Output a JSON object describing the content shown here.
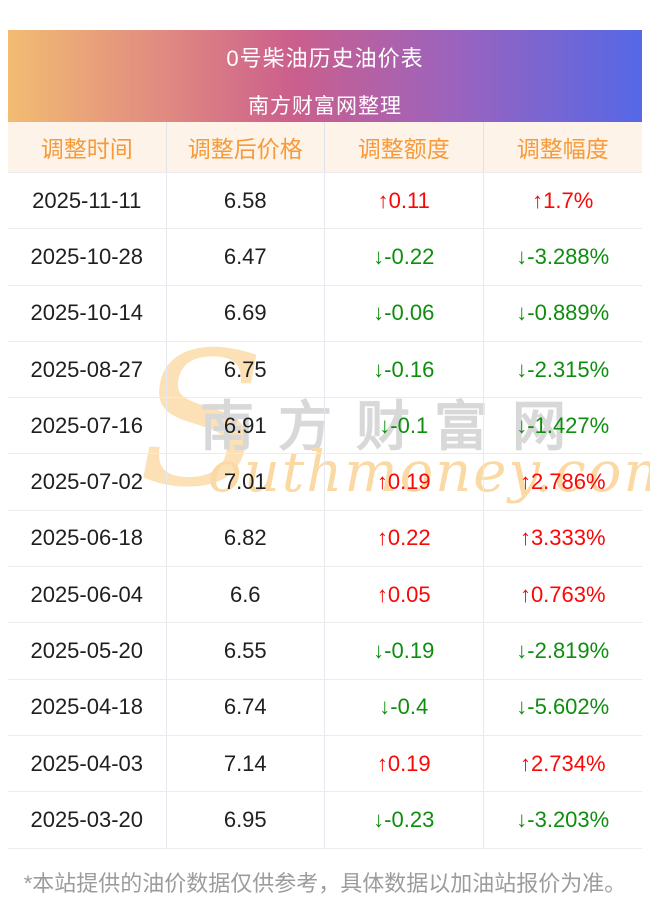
{
  "banner": {
    "title": "0号柴油历史油价表",
    "subtitle": "南方财富网整理",
    "gradient_colors": [
      "#f2bc72",
      "#e08981",
      "#cb5f8d",
      "#9c63bd",
      "#5568e6"
    ],
    "text_color": "#ffffff"
  },
  "table": {
    "headers": [
      "调整时间",
      "调整后价格",
      "调整额度",
      "调整幅度"
    ],
    "header_text_color": "#f79a39",
    "header_bg": "#fdf3e8",
    "up_color": "#fb0707",
    "down_color": "#0e8e0e",
    "date_color": "#1f1f1f",
    "rows": [
      {
        "date": "2025-11-11",
        "price": "6.58",
        "change": "↑0.11",
        "pct": "↑1.7%",
        "dir": "up"
      },
      {
        "date": "2025-10-28",
        "price": "6.47",
        "change": "↓-0.22",
        "pct": "↓-3.288%",
        "dir": "down"
      },
      {
        "date": "2025-10-14",
        "price": "6.69",
        "change": "↓-0.06",
        "pct": "↓-0.889%",
        "dir": "down"
      },
      {
        "date": "2025-08-27",
        "price": "6.75",
        "change": "↓-0.16",
        "pct": "↓-2.315%",
        "dir": "down"
      },
      {
        "date": "2025-07-16",
        "price": "6.91",
        "change": "↓-0.1",
        "pct": "↓-1.427%",
        "dir": "down"
      },
      {
        "date": "2025-07-02",
        "price": "7.01",
        "change": "↑0.19",
        "pct": "↑2.786%",
        "dir": "up"
      },
      {
        "date": "2025-06-18",
        "price": "6.82",
        "change": "↑0.22",
        "pct": "↑3.333%",
        "dir": "up"
      },
      {
        "date": "2025-06-04",
        "price": "6.6",
        "change": "↑0.05",
        "pct": "↑0.763%",
        "dir": "up"
      },
      {
        "date": "2025-05-20",
        "price": "6.55",
        "change": "↓-0.19",
        "pct": "↓-2.819%",
        "dir": "down"
      },
      {
        "date": "2025-04-18",
        "price": "6.74",
        "change": "↓-0.4",
        "pct": "↓-5.602%",
        "dir": "down"
      },
      {
        "date": "2025-04-03",
        "price": "7.14",
        "change": "↑0.19",
        "pct": "↑2.734%",
        "dir": "up"
      },
      {
        "date": "2025-03-20",
        "price": "6.95",
        "change": "↓-0.23",
        "pct": "↓-3.203%",
        "dir": "down"
      }
    ]
  },
  "watermark": {
    "s_glyph": "S",
    "cn": "南方财富网",
    "en": "outhmoney.com"
  },
  "footer": {
    "note": "*本站提供的油价数据仅供参考，具体数据以加油站报价为准。"
  },
  "chart_data": {
    "type": "table",
    "title": "0号柴油历史油价表",
    "subtitle": "南方财富网整理",
    "columns": [
      "调整时间",
      "调整后价格",
      "调整额度",
      "调整幅度"
    ],
    "rows": [
      [
        "2025-11-11",
        6.58,
        "↑0.11",
        "↑1.7%"
      ],
      [
        "2025-10-28",
        6.47,
        "↓-0.22",
        "↓-3.288%"
      ],
      [
        "2025-10-14",
        6.69,
        "↓-0.06",
        "↓-0.889%"
      ],
      [
        "2025-08-27",
        6.75,
        "↓-0.16",
        "↓-2.315%"
      ],
      [
        "2025-07-16",
        6.91,
        "↓-0.1",
        "↓-1.427%"
      ],
      [
        "2025-07-02",
        7.01,
        "↑0.19",
        "↑2.786%"
      ],
      [
        "2025-06-18",
        6.82,
        "↑0.22",
        "↑3.333%"
      ],
      [
        "2025-06-04",
        6.6,
        "↑0.05",
        "↑0.763%"
      ],
      [
        "2025-05-20",
        6.55,
        "↓-0.19",
        "↓-2.819%"
      ],
      [
        "2025-04-18",
        6.74,
        "↓-0.4",
        "↓-5.602%"
      ],
      [
        "2025-04-03",
        7.14,
        "↑0.19",
        "↑2.734%"
      ],
      [
        "2025-03-20",
        6.95,
        "↓-0.23",
        "↓-3.203%"
      ]
    ],
    "notes": "red ↑ = price increase, green ↓ = price decrease"
  }
}
